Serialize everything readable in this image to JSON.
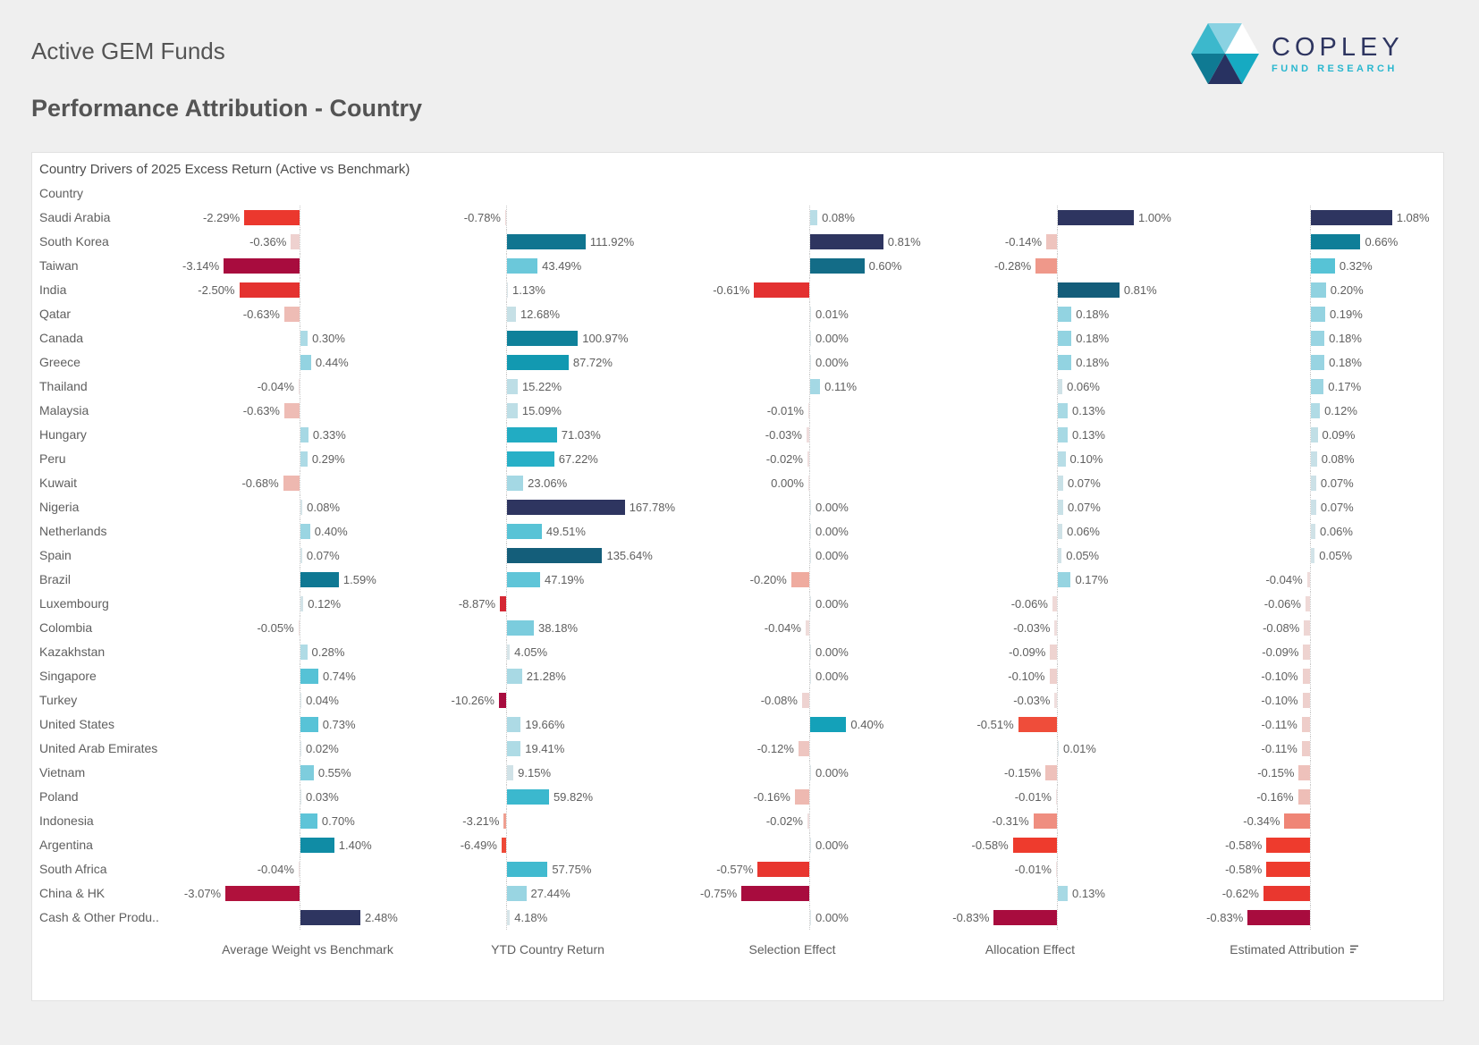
{
  "page": {
    "report_title": "Active GEM Funds",
    "section_title": "Performance Attribution - Country"
  },
  "logo": {
    "brand": "COPLEY",
    "tagline": "FUND RESEARCH",
    "colors": {
      "upper_left": "#3cb8cc",
      "top": "#8ad2e2",
      "upper_right": "#ffffff",
      "lower_right": "#16aac2",
      "bottom": "#283261",
      "lower_left": "#0f7a93",
      "brand_text": "#2e3560",
      "tagline_text": "#29b7cf"
    }
  },
  "chart_data": {
    "type": "bar",
    "orientation": "horizontal",
    "title": "Country Drivers of 2025 Excess Return (Active vs Benchmark)",
    "category_axis_label": "Country",
    "value_format": "0.00%",
    "grid": false,
    "sorted_by": "Estimated Attribution",
    "categories": [
      "Saudi Arabia",
      "South Korea",
      "Taiwan",
      "India",
      "Qatar",
      "Canada",
      "Greece",
      "Thailand",
      "Malaysia",
      "Hungary",
      "Peru",
      "Kuwait",
      "Nigeria",
      "Netherlands",
      "Spain",
      "Brazil",
      "Luxembourg",
      "Colombia",
      "Kazakhstan",
      "Singapore",
      "Turkey",
      "United States",
      "United Arab Emirates",
      "Vietnam",
      "Poland",
      "Indonesia",
      "Argentina",
      "South Africa",
      "China & HK",
      "Cash & Other Produ.."
    ],
    "series": [
      {
        "name": "Average Weight vs Benchmark",
        "sort_icon": false,
        "values": [
          -2.29,
          -0.36,
          -3.14,
          -2.5,
          -0.63,
          0.3,
          0.44,
          -0.04,
          -0.63,
          0.33,
          0.29,
          -0.68,
          0.08,
          0.4,
          0.07,
          1.59,
          0.12,
          -0.05,
          0.28,
          0.74,
          0.04,
          0.73,
          0.02,
          0.55,
          0.03,
          0.7,
          1.4,
          -0.04,
          -3.07,
          2.48
        ]
      },
      {
        "name": "YTD Country Return",
        "sort_icon": false,
        "values": [
          -0.78,
          111.92,
          43.49,
          1.13,
          12.68,
          100.97,
          87.72,
          15.22,
          15.09,
          71.03,
          67.22,
          23.06,
          167.78,
          49.51,
          135.64,
          47.19,
          -8.87,
          38.18,
          4.05,
          21.28,
          -10.26,
          19.66,
          19.41,
          9.15,
          59.82,
          -3.21,
          -6.49,
          57.75,
          27.44,
          4.18
        ]
      },
      {
        "name": "Selection Effect",
        "sort_icon": false,
        "values": [
          0.08,
          0.81,
          0.6,
          -0.61,
          0.01,
          0.0,
          0.0,
          0.11,
          -0.01,
          -0.03,
          -0.02,
          0,
          0.0,
          0.0,
          0.0,
          -0.2,
          0.0,
          -0.04,
          0.0,
          0.0,
          -0.08,
          0.4,
          -0.12,
          0.0,
          -0.16,
          -0.02,
          0.0,
          -0.57,
          -0.75,
          0.0
        ]
      },
      {
        "name": "Allocation Effect",
        "sort_icon": false,
        "values": [
          1.0,
          -0.14,
          -0.28,
          0.81,
          0.18,
          0.18,
          0.18,
          0.06,
          0.13,
          0.13,
          0.1,
          0.07,
          0.07,
          0.06,
          0.05,
          0.17,
          -0.06,
          -0.03,
          -0.09,
          -0.1,
          -0.03,
          -0.51,
          0.01,
          -0.15,
          -0.01,
          -0.31,
          -0.58,
          -0.01,
          0.13,
          -0.83
        ]
      },
      {
        "name": "Estimated Attribution",
        "sort_icon": true,
        "values": [
          1.08,
          0.66,
          0.32,
          0.2,
          0.19,
          0.18,
          0.18,
          0.17,
          0.12,
          0.09,
          0.08,
          0.07,
          0.07,
          0.06,
          0.05,
          -0.04,
          -0.06,
          -0.08,
          -0.09,
          -0.1,
          -0.1,
          -0.11,
          -0.11,
          -0.15,
          -0.16,
          -0.34,
          -0.58,
          -0.58,
          -0.62,
          -0.83
        ]
      }
    ],
    "palette": {
      "positive_ramp": [
        [
          0.0,
          "#dde7ea"
        ],
        [
          0.06,
          "#cfe2e7"
        ],
        [
          0.12,
          "#abdae5"
        ],
        [
          0.2,
          "#8ad0df"
        ],
        [
          0.3,
          "#55c2d6"
        ],
        [
          0.4,
          "#27b0c7"
        ],
        [
          0.5,
          "#13a0b8"
        ],
        [
          0.62,
          "#0e7b95"
        ],
        [
          0.75,
          "#136b86"
        ],
        [
          0.87,
          "#15506e"
        ],
        [
          1.0,
          "#2e3560"
        ]
      ],
      "negative_ramp": [
        [
          0.0,
          "#f0e3e3"
        ],
        [
          0.1,
          "#eed5d3"
        ],
        [
          0.2,
          "#eebcb5"
        ],
        [
          0.3,
          "#efa294"
        ],
        [
          0.42,
          "#ef8273"
        ],
        [
          0.55,
          "#ef5b43"
        ],
        [
          0.7,
          "#ee3b2d"
        ],
        [
          0.82,
          "#e23031"
        ],
        [
          0.92,
          "#c41d38"
        ],
        [
          1.0,
          "#a80c3e"
        ]
      ],
      "zero_line": "#c9c9c9",
      "value_label_color": "#5f5f5f"
    }
  }
}
